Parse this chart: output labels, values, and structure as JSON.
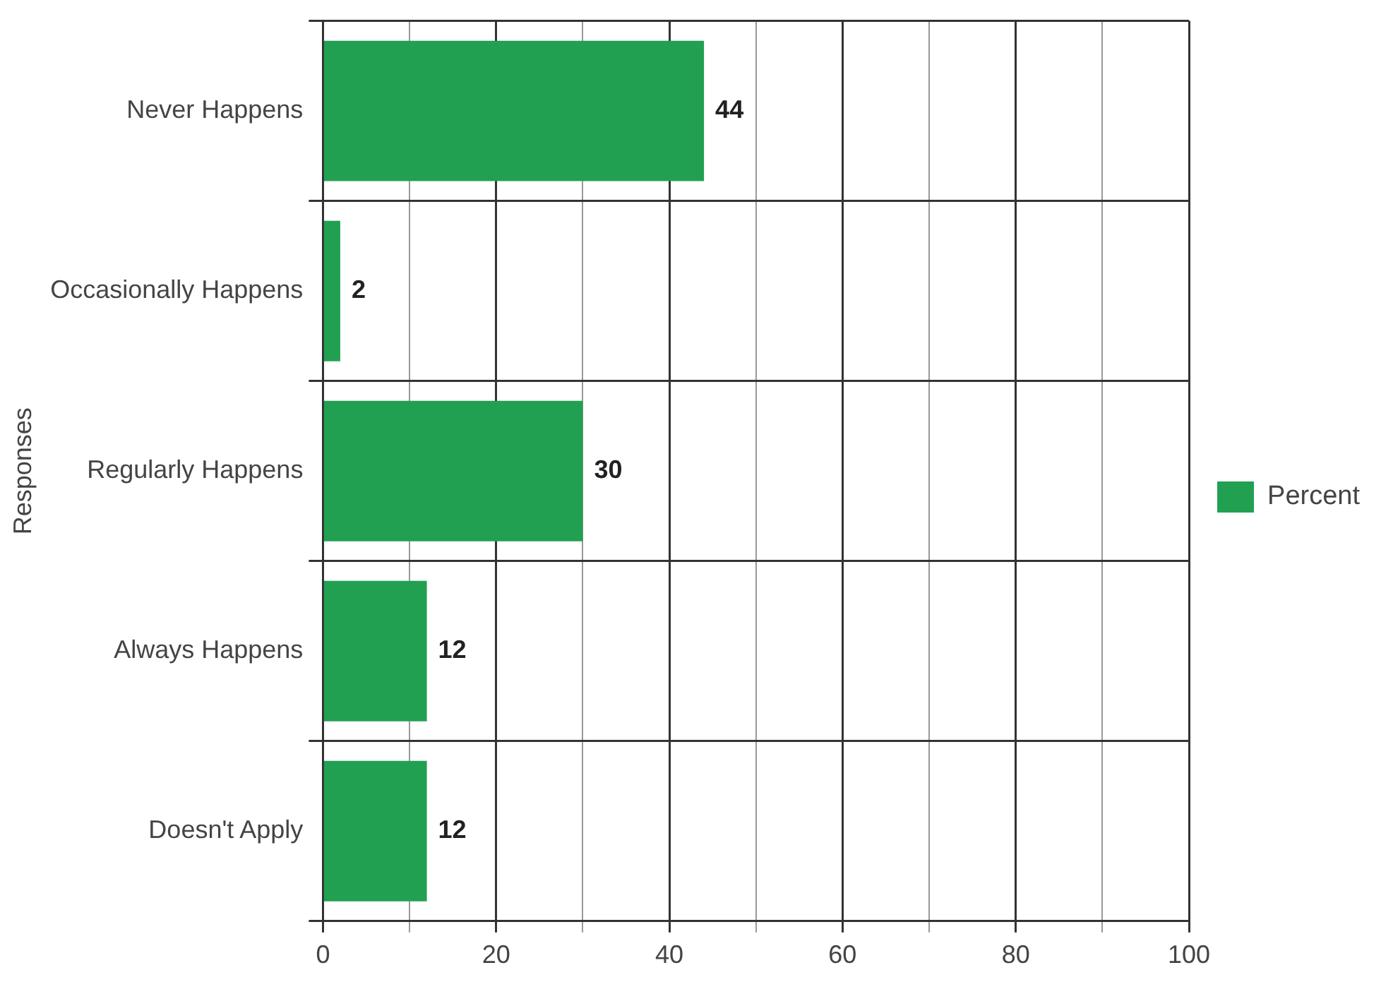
{
  "chart_data": {
    "type": "bar",
    "orientation": "horizontal",
    "ylabel": "Responses",
    "categories": [
      "Never Happens",
      "Occasionally Happens",
      "Regularly Happens",
      "Always Happens",
      "Doesn't Apply"
    ],
    "series": [
      {
        "name": "Percent",
        "color": "#22a052",
        "values": [
          44,
          2,
          30,
          12,
          12
        ]
      }
    ],
    "xlim": [
      0,
      100
    ],
    "xticks": [
      0,
      {
        "value": 10,
        "label": null
      },
      20,
      {
        "value": 30,
        "label": null
      },
      40,
      {
        "value": 50,
        "label": null
      },
      60,
      {
        "value": 70,
        "label": null
      },
      80,
      {
        "value": 90,
        "label": null
      },
      100
    ],
    "grid": true,
    "legend": "right",
    "data_labels": true
  }
}
